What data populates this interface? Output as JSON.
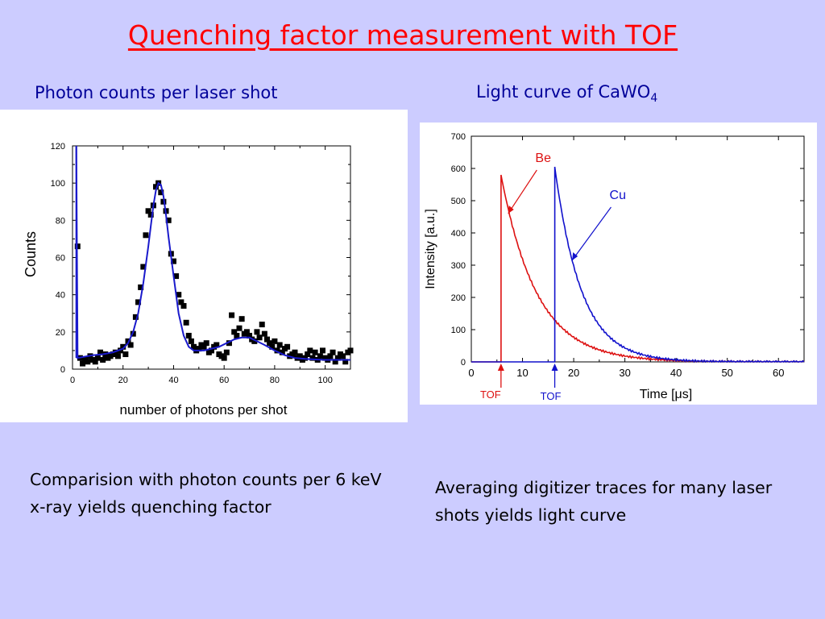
{
  "slide": {
    "title": "Quenching factor measurement with TOF",
    "subtitle_left": "Photon counts per laser shot",
    "subtitle_right_main": "Light curve of CaWO",
    "subtitle_right_sub": "4",
    "caption_left": "Comparision with photon counts per 6 keV x-ray yields quenching factor",
    "caption_right": "Averaging digitizer traces for many laser shots yields light curve"
  },
  "colors": {
    "title": "#ff0000",
    "subtitle": "#000099",
    "background": "#ccccff",
    "fit_line": "#1a1acc",
    "be_curve": "#dd1111",
    "cu_curve": "#1111cc"
  },
  "chart_data": [
    {
      "type": "scatter",
      "xlabel": "number of photons per shot",
      "ylabel": "Counts",
      "xlim": [
        0,
        110
      ],
      "ylim": [
        0,
        120
      ],
      "x_ticks": [
        "0",
        "20",
        "40",
        "60",
        "80",
        "100"
      ],
      "y_ticks": [
        "0",
        "20",
        "40",
        "60",
        "80",
        "100",
        "120"
      ],
      "series": [
        {
          "kind": "points",
          "x": [
            2,
            3,
            4,
            5,
            6,
            7,
            8,
            9,
            10,
            11,
            12,
            13,
            14,
            15,
            16,
            17,
            18,
            19,
            20,
            21,
            22,
            23,
            24,
            25,
            26,
            27,
            28,
            29,
            30,
            31,
            32,
            33,
            34,
            35,
            36,
            37,
            38,
            39,
            40,
            41,
            42,
            43,
            44,
            45,
            46,
            47,
            48,
            49,
            50,
            51,
            52,
            53,
            54,
            55,
            56,
            57,
            58,
            59,
            60,
            61,
            62,
            63,
            64,
            65,
            66,
            67,
            68,
            69,
            70,
            71,
            72,
            73,
            74,
            75,
            76,
            77,
            78,
            79,
            80,
            81,
            82,
            83,
            84,
            85,
            86,
            87,
            88,
            89,
            90,
            91,
            92,
            93,
            94,
            95,
            96,
            97,
            98,
            99,
            100,
            101,
            102,
            103,
            104,
            105,
            106,
            107,
            108,
            109,
            110
          ],
          "y": [
            66,
            6,
            3,
            5,
            4,
            7,
            5,
            4,
            6,
            9,
            5,
            8,
            6,
            7,
            8,
            9,
            7,
            10,
            12,
            8,
            15,
            13,
            19,
            28,
            36,
            44,
            55,
            72,
            85,
            83,
            88,
            98,
            100,
            95,
            90,
            85,
            80,
            62,
            58,
            50,
            40,
            36,
            34,
            25,
            18,
            15,
            12,
            10,
            11,
            13,
            12,
            14,
            9,
            10,
            12,
            13,
            8,
            7,
            6,
            9,
            14,
            29,
            20,
            18,
            22,
            27,
            19,
            20,
            18,
            16,
            15,
            20,
            17,
            24,
            19,
            16,
            14,
            12,
            15,
            10,
            13,
            9,
            11,
            12,
            7,
            8,
            9,
            6,
            7,
            5,
            6,
            8,
            10,
            6,
            9,
            5,
            7,
            10,
            6,
            5,
            7,
            9,
            4,
            6,
            8,
            7,
            4,
            9,
            10
          ]
        },
        {
          "kind": "line",
          "name": "fit",
          "x": [
            1.5,
            2,
            4,
            8,
            12,
            16,
            20,
            22,
            24,
            26,
            28,
            30,
            31,
            32,
            33,
            34,
            35,
            36,
            37,
            38,
            40,
            42,
            44,
            46,
            48,
            50,
            52,
            55,
            58,
            61,
            64,
            67,
            70,
            73,
            76,
            80,
            84,
            88,
            92,
            96,
            100,
            104,
            108,
            110
          ],
          "y": [
            120,
            6,
            6.5,
            7.5,
            8,
            9,
            11,
            14,
            20,
            30,
            46,
            66,
            77,
            88,
            96,
            100,
            99,
            93,
            83,
            71,
            50,
            30,
            18,
            12,
            10,
            10,
            10,
            11,
            12,
            14,
            16,
            17,
            17,
            15,
            13,
            10,
            7.5,
            6,
            5.5,
            5.2,
            5,
            5,
            5,
            5
          ]
        }
      ]
    },
    {
      "type": "line",
      "xlabel": "Time [μs]",
      "ylabel": "Intensity  [a.u.]",
      "xlim": [
        0,
        65
      ],
      "ylim": [
        0,
        700
      ],
      "x_ticks": [
        "0",
        "10",
        "20",
        "30",
        "40",
        "50",
        "60"
      ],
      "y_ticks": [
        "0",
        "100",
        "200",
        "300",
        "400",
        "500",
        "600",
        "700"
      ],
      "series": [
        {
          "name": "Be",
          "color": "#dd1111",
          "onset": 5.8,
          "peak": 580,
          "tail_end": 65,
          "decay_constant": 7.0,
          "x": [
            0,
            5.8,
            5.9,
            6.3,
            6.8,
            8,
            10,
            12,
            15,
            20,
            25,
            30,
            35,
            40,
            45,
            50,
            55,
            60,
            65
          ],
          "y": [
            0,
            0,
            580,
            480,
            430,
            355,
            280,
            220,
            160,
            100,
            58,
            33,
            20,
            12,
            8,
            5,
            3,
            2,
            1
          ]
        },
        {
          "name": "Cu",
          "color": "#1111cc",
          "onset": 16.3,
          "peak": 605,
          "tail_end": 65,
          "decay_constant": 5.2,
          "x": [
            0,
            16.3,
            16.5,
            17,
            17.5,
            18.5,
            20,
            22,
            25,
            28,
            30,
            35,
            40,
            45,
            50,
            55,
            60,
            65
          ],
          "y": [
            0,
            0,
            605,
            540,
            470,
            400,
            330,
            250,
            155,
            95,
            72,
            32,
            15,
            7,
            3,
            1.5,
            1,
            0
          ]
        }
      ],
      "annotations": [
        {
          "text": "Be",
          "color": "#dd1111"
        },
        {
          "text": "Cu",
          "color": "#1111cc"
        },
        {
          "text": "TOF",
          "color": "#dd1111"
        },
        {
          "text": "TOF",
          "color": "#1111cc"
        }
      ]
    }
  ]
}
